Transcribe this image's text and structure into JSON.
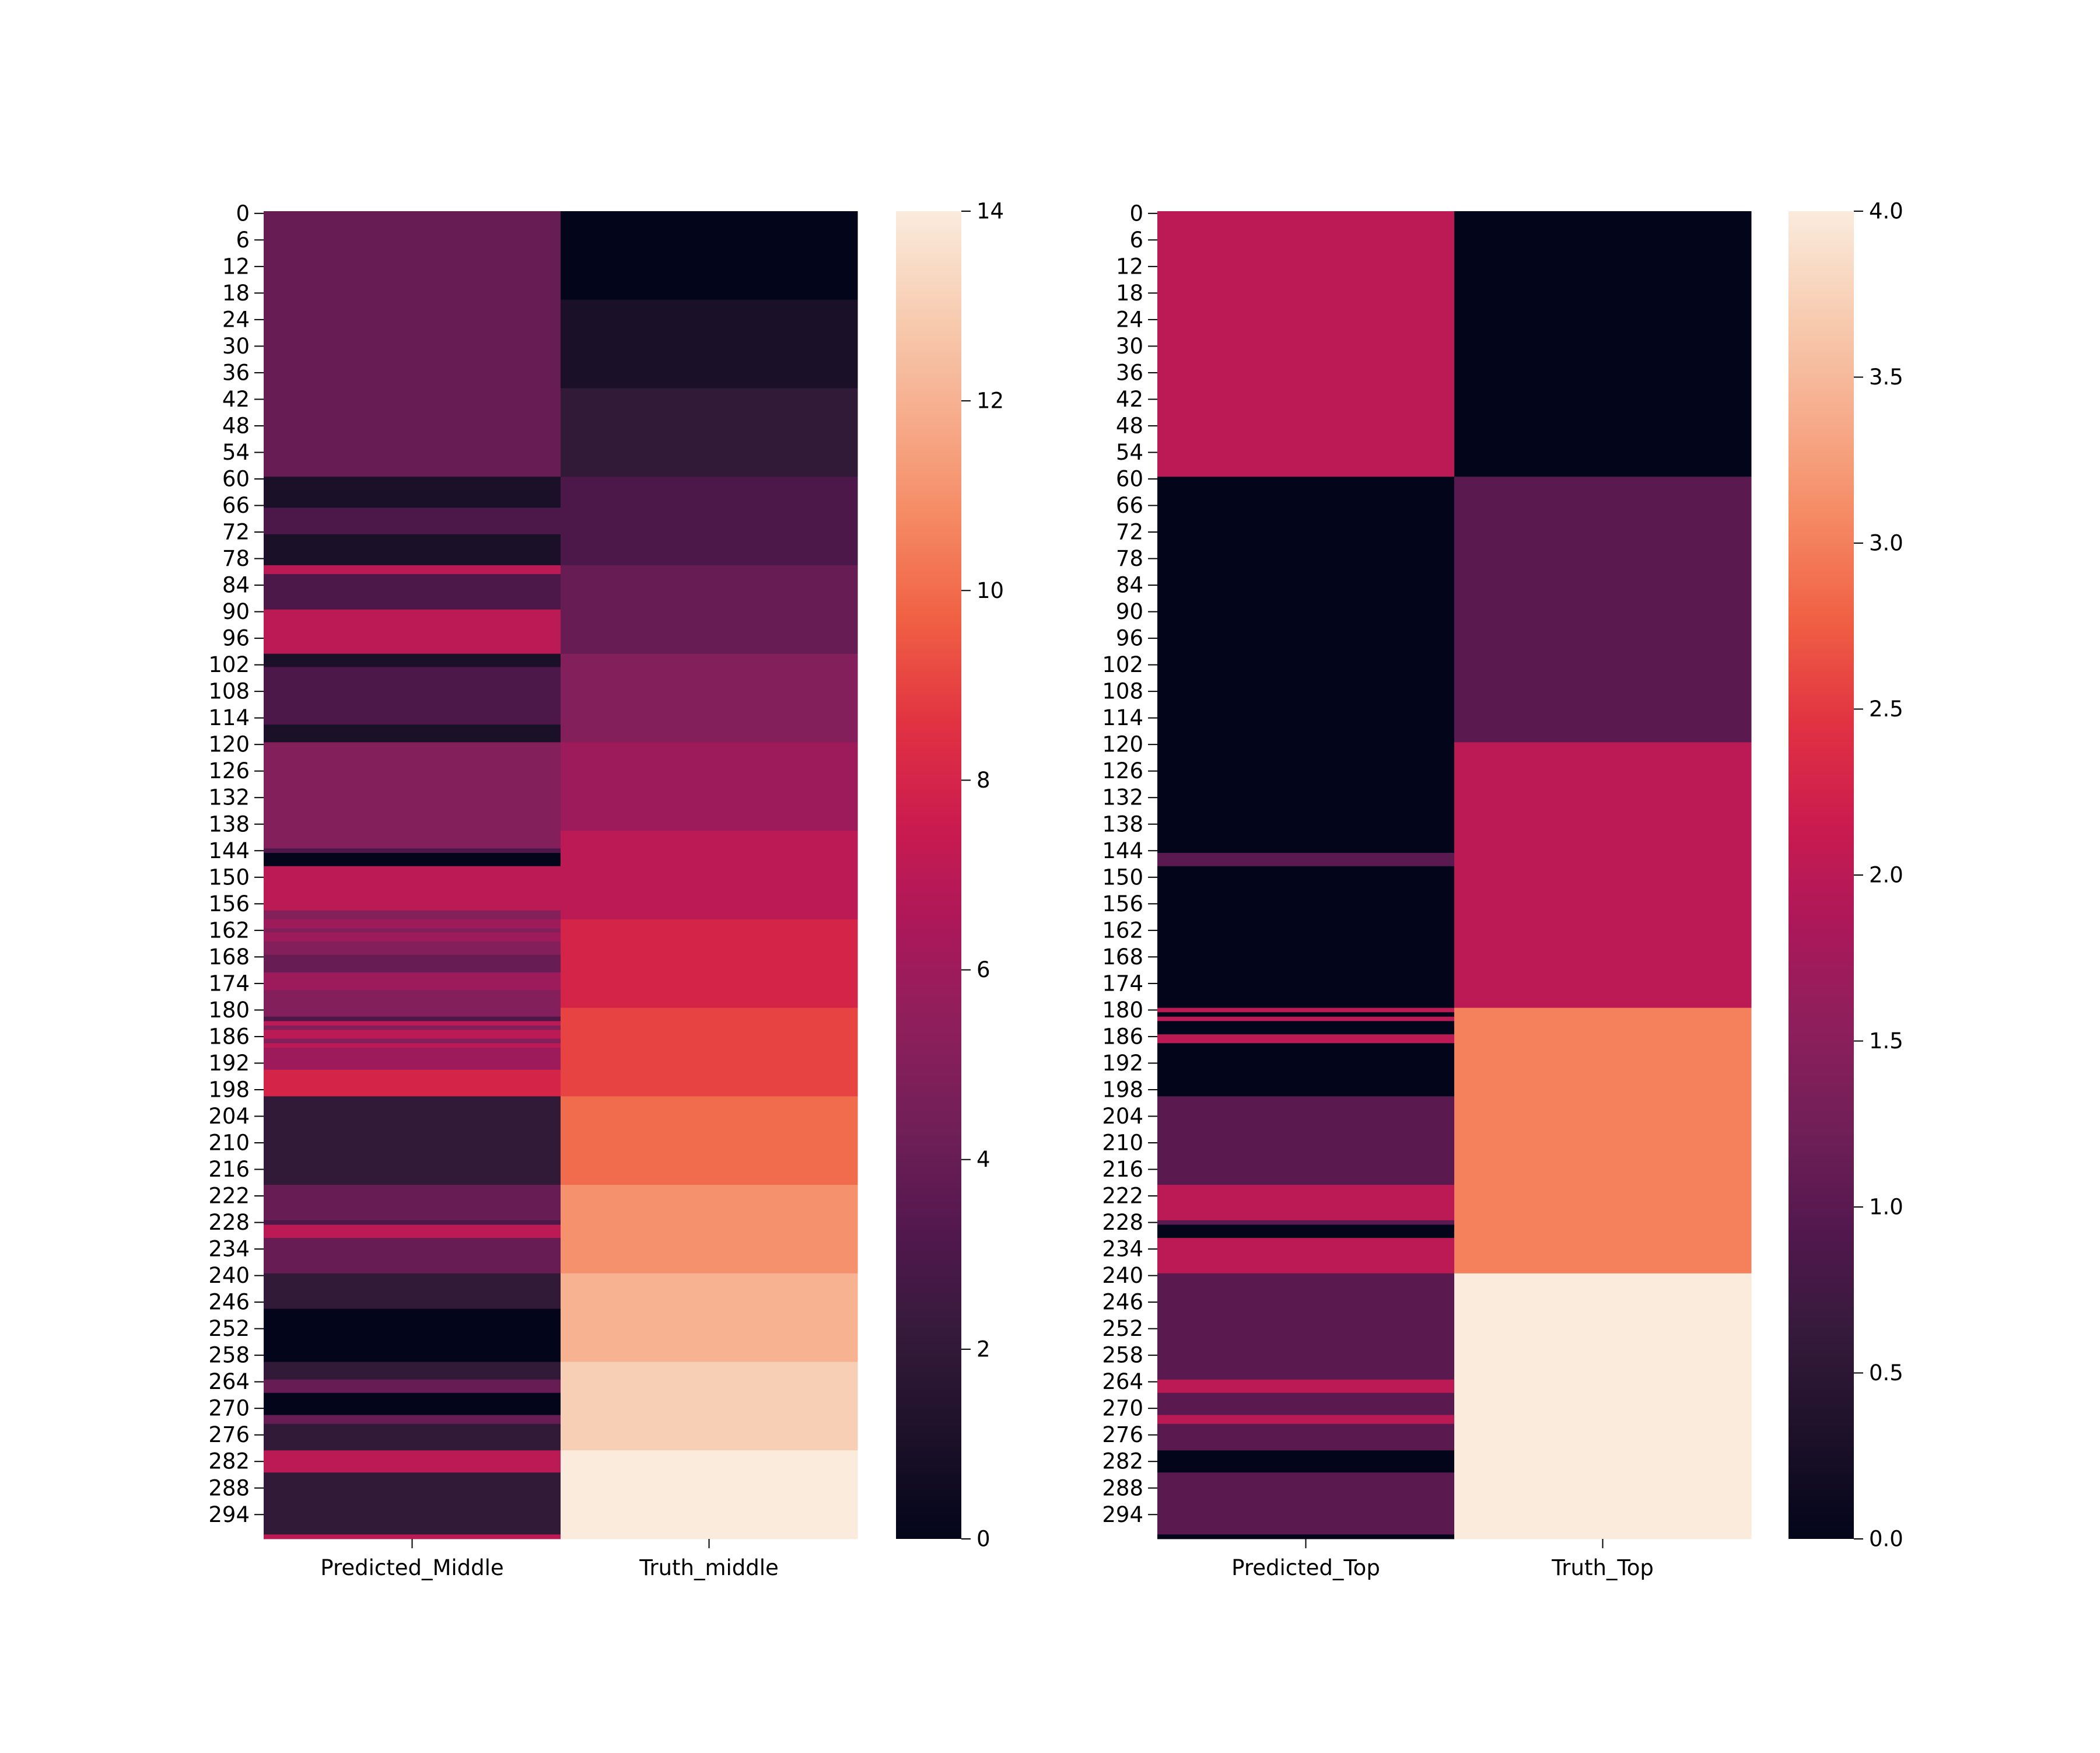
{
  "colormap": {
    "name": "rocket",
    "stops": [
      "#03051a",
      "#1c1128",
      "#351a3b",
      "#52184e",
      "#701f57",
      "#8d1f5c",
      "#ab185a",
      "#cb1b4f",
      "#e13342",
      "#f06043",
      "#f58a64",
      "#f6ad8c",
      "#f7cdb2",
      "#faebdd"
    ]
  },
  "chart_data": [
    {
      "type": "heatmap",
      "title": "",
      "xlabel": "",
      "ylabel": "",
      "columns": [
        "Predicted_Middle",
        "Truth_middle"
      ],
      "ytick_labels": [
        "0",
        "6",
        "12",
        "18",
        "24",
        "30",
        "36",
        "42",
        "48",
        "54",
        "60",
        "66",
        "72",
        "78",
        "84",
        "90",
        "96",
        "102",
        "108",
        "114",
        "120",
        "126",
        "132",
        "138",
        "144",
        "150",
        "156",
        "162",
        "168",
        "174",
        "180",
        "186",
        "192",
        "198",
        "204",
        "210",
        "216",
        "222",
        "228",
        "234",
        "240",
        "246",
        "252",
        "258",
        "264",
        "270",
        "276",
        "282",
        "288",
        "294"
      ],
      "n_rows": 300,
      "vmin": 0,
      "vmax": 14,
      "colorbar_ticks": [
        "0",
        "2",
        "4",
        "6",
        "8",
        "10",
        "12",
        "14"
      ],
      "colorbar_tick_values": [
        0,
        2,
        4,
        6,
        8,
        10,
        12,
        14
      ],
      "series": [
        {
          "name": "Predicted_Middle",
          "runs": [
            {
              "start": 0,
              "end": 60,
              "value": 4
            },
            {
              "start": 60,
              "end": 67,
              "value": 1
            },
            {
              "start": 67,
              "end": 73,
              "value": 3
            },
            {
              "start": 73,
              "end": 80,
              "value": 1
            },
            {
              "start": 80,
              "end": 82,
              "value": 7
            },
            {
              "start": 82,
              "end": 90,
              "value": 3
            },
            {
              "start": 90,
              "end": 100,
              "value": 7
            },
            {
              "start": 100,
              "end": 103,
              "value": 1
            },
            {
              "start": 103,
              "end": 116,
              "value": 3
            },
            {
              "start": 116,
              "end": 120,
              "value": 1
            },
            {
              "start": 120,
              "end": 144,
              "value": 5
            },
            {
              "start": 144,
              "end": 145,
              "value": 3
            },
            {
              "start": 145,
              "end": 148,
              "value": 0
            },
            {
              "start": 148,
              "end": 158,
              "value": 7
            },
            {
              "start": 158,
              "end": 160,
              "value": 5
            },
            {
              "start": 160,
              "end": 162,
              "value": 6
            },
            {
              "start": 162,
              "end": 163,
              "value": 5
            },
            {
              "start": 163,
              "end": 165,
              "value": 6
            },
            {
              "start": 165,
              "end": 168,
              "value": 5
            },
            {
              "start": 168,
              "end": 172,
              "value": 4
            },
            {
              "start": 172,
              "end": 176,
              "value": 6
            },
            {
              "start": 176,
              "end": 182,
              "value": 5
            },
            {
              "start": 182,
              "end": 183,
              "value": 3
            },
            {
              "start": 183,
              "end": 184,
              "value": 7
            },
            {
              "start": 184,
              "end": 185,
              "value": 5
            },
            {
              "start": 185,
              "end": 187,
              "value": 7
            },
            {
              "start": 187,
              "end": 188,
              "value": 5
            },
            {
              "start": 188,
              "end": 189,
              "value": 7
            },
            {
              "start": 189,
              "end": 194,
              "value": 6
            },
            {
              "start": 194,
              "end": 200,
              "value": 8
            },
            {
              "start": 200,
              "end": 220,
              "value": 2
            },
            {
              "start": 220,
              "end": 228,
              "value": 4
            },
            {
              "start": 228,
              "end": 229,
              "value": 3
            },
            {
              "start": 229,
              "end": 232,
              "value": 7
            },
            {
              "start": 232,
              "end": 240,
              "value": 4
            },
            {
              "start": 240,
              "end": 248,
              "value": 2
            },
            {
              "start": 248,
              "end": 260,
              "value": 0
            },
            {
              "start": 260,
              "end": 264,
              "value": 2
            },
            {
              "start": 264,
              "end": 267,
              "value": 4
            },
            {
              "start": 267,
              "end": 272,
              "value": 0
            },
            {
              "start": 272,
              "end": 274,
              "value": 4
            },
            {
              "start": 274,
              "end": 280,
              "value": 2
            },
            {
              "start": 280,
              "end": 285,
              "value": 7
            },
            {
              "start": 285,
              "end": 299,
              "value": 2
            },
            {
              "start": 299,
              "end": 300,
              "value": 7
            }
          ]
        },
        {
          "name": "Truth_middle",
          "runs": [
            {
              "start": 0,
              "end": 20,
              "value": 0
            },
            {
              "start": 20,
              "end": 40,
              "value": 1
            },
            {
              "start": 40,
              "end": 60,
              "value": 2
            },
            {
              "start": 60,
              "end": 80,
              "value": 3
            },
            {
              "start": 80,
              "end": 100,
              "value": 4
            },
            {
              "start": 100,
              "end": 120,
              "value": 5
            },
            {
              "start": 120,
              "end": 140,
              "value": 6
            },
            {
              "start": 140,
              "end": 160,
              "value": 7
            },
            {
              "start": 160,
              "end": 180,
              "value": 8
            },
            {
              "start": 180,
              "end": 200,
              "value": 9
            },
            {
              "start": 200,
              "end": 220,
              "value": 10
            },
            {
              "start": 220,
              "end": 240,
              "value": 11
            },
            {
              "start": 240,
              "end": 260,
              "value": 12
            },
            {
              "start": 260,
              "end": 280,
              "value": 13
            },
            {
              "start": 280,
              "end": 300,
              "value": 14
            }
          ]
        }
      ]
    },
    {
      "type": "heatmap",
      "title": "",
      "xlabel": "",
      "ylabel": "",
      "columns": [
        "Predicted_Top",
        "Truth_Top"
      ],
      "ytick_labels": [
        "0",
        "6",
        "12",
        "18",
        "24",
        "30",
        "36",
        "42",
        "48",
        "54",
        "60",
        "66",
        "72",
        "78",
        "84",
        "90",
        "96",
        "102",
        "108",
        "114",
        "120",
        "126",
        "132",
        "138",
        "144",
        "150",
        "156",
        "162",
        "168",
        "174",
        "180",
        "186",
        "192",
        "198",
        "204",
        "210",
        "216",
        "222",
        "228",
        "234",
        "240",
        "246",
        "252",
        "258",
        "264",
        "270",
        "276",
        "282",
        "288",
        "294"
      ],
      "n_rows": 300,
      "vmin": 0,
      "vmax": 4,
      "colorbar_ticks": [
        "0.0",
        "0.5",
        "1.0",
        "1.5",
        "2.0",
        "2.5",
        "3.0",
        "3.5",
        "4.0"
      ],
      "colorbar_tick_values": [
        0,
        0.5,
        1,
        1.5,
        2,
        2.5,
        3,
        3.5,
        4
      ],
      "series": [
        {
          "name": "Predicted_Top",
          "runs": [
            {
              "start": 0,
              "end": 60,
              "value": 2
            },
            {
              "start": 60,
              "end": 145,
              "value": 0
            },
            {
              "start": 145,
              "end": 148,
              "value": 1
            },
            {
              "start": 148,
              "end": 180,
              "value": 0
            },
            {
              "start": 180,
              "end": 181,
              "value": 2
            },
            {
              "start": 181,
              "end": 182,
              "value": 0
            },
            {
              "start": 182,
              "end": 183,
              "value": 2
            },
            {
              "start": 183,
              "end": 186,
              "value": 0
            },
            {
              "start": 186,
              "end": 188,
              "value": 2
            },
            {
              "start": 188,
              "end": 200,
              "value": 0
            },
            {
              "start": 200,
              "end": 220,
              "value": 1
            },
            {
              "start": 220,
              "end": 228,
              "value": 2
            },
            {
              "start": 228,
              "end": 229,
              "value": 1
            },
            {
              "start": 229,
              "end": 232,
              "value": 0
            },
            {
              "start": 232,
              "end": 240,
              "value": 2
            },
            {
              "start": 240,
              "end": 264,
              "value": 1
            },
            {
              "start": 264,
              "end": 267,
              "value": 2
            },
            {
              "start": 267,
              "end": 272,
              "value": 1
            },
            {
              "start": 272,
              "end": 274,
              "value": 2
            },
            {
              "start": 274,
              "end": 280,
              "value": 1
            },
            {
              "start": 280,
              "end": 285,
              "value": 0
            },
            {
              "start": 285,
              "end": 299,
              "value": 1
            },
            {
              "start": 299,
              "end": 300,
              "value": 0
            }
          ]
        },
        {
          "name": "Truth_Top",
          "runs": [
            {
              "start": 0,
              "end": 60,
              "value": 0
            },
            {
              "start": 60,
              "end": 120,
              "value": 1
            },
            {
              "start": 120,
              "end": 180,
              "value": 2
            },
            {
              "start": 180,
              "end": 240,
              "value": 3
            },
            {
              "start": 240,
              "end": 300,
              "value": 4
            }
          ]
        }
      ]
    }
  ]
}
